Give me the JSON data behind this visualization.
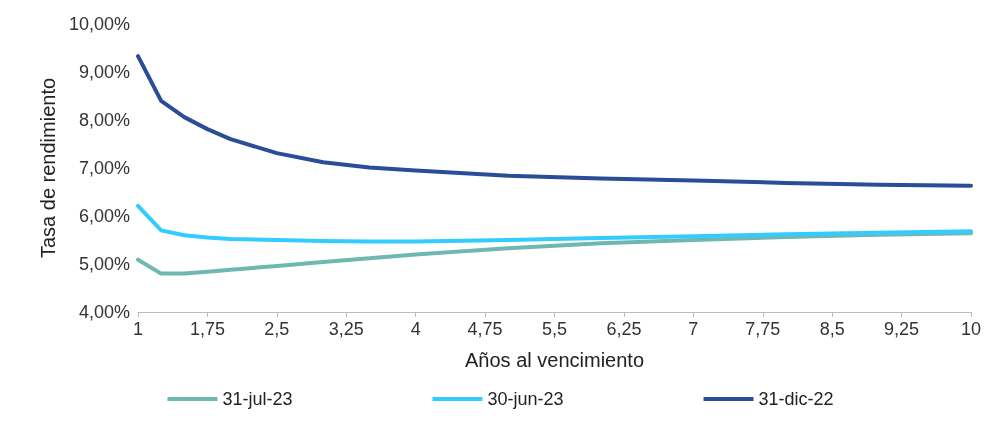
{
  "chart_data": {
    "type": "line",
    "xlabel": "Años al vencimiento",
    "ylabel": "Tasa de rendimiento",
    "x": [
      1,
      1.25,
      1.5,
      1.75,
      2,
      2.5,
      3,
      3.5,
      4,
      5,
      6,
      7,
      8,
      9,
      10
    ],
    "series": [
      {
        "name": "31-jul-23",
        "color": "#6fb8b1",
        "values": [
          5.09,
          4.8,
          4.8,
          4.84,
          4.88,
          4.96,
          5.04,
          5.12,
          5.2,
          5.33,
          5.43,
          5.5,
          5.56,
          5.61,
          5.64
        ]
      },
      {
        "name": "30-jun-23",
        "color": "#33ccff",
        "values": [
          6.21,
          5.7,
          5.6,
          5.55,
          5.52,
          5.5,
          5.48,
          5.47,
          5.47,
          5.5,
          5.54,
          5.58,
          5.62,
          5.65,
          5.68
        ]
      },
      {
        "name": "31-dic-22",
        "color": "#2b4c96",
        "values": [
          9.33,
          8.4,
          8.06,
          7.81,
          7.6,
          7.31,
          7.12,
          7.01,
          6.95,
          6.84,
          6.78,
          6.74,
          6.69,
          6.65,
          6.63
        ]
      }
    ],
    "xlim": [
      1,
      10
    ],
    "xticks": [
      1,
      {
        "value": 1.75,
        "label": "1,75"
      },
      {
        "value": 2.5,
        "label": "2,5"
      },
      {
        "value": 3.25,
        "label": "3,25"
      },
      4,
      {
        "value": 4.75,
        "label": "4,75"
      },
      {
        "value": 5.5,
        "label": "5,5"
      },
      {
        "value": 6.25,
        "label": "6,25"
      },
      7,
      {
        "value": 7.75,
        "label": "7,75"
      },
      {
        "value": 8.5,
        "label": "8,5"
      },
      {
        "value": 9.25,
        "label": "9,25"
      },
      10
    ],
    "ylim": [
      4,
      10
    ],
    "yticks": [
      {
        "value": 4,
        "label": "4,00%"
      },
      {
        "value": 5,
        "label": "5,00%"
      },
      {
        "value": 6,
        "label": "6,00%"
      },
      {
        "value": 7,
        "label": "7,00%"
      },
      {
        "value": 8,
        "label": "8,00%"
      },
      {
        "value": 9,
        "label": "9,00%"
      },
      {
        "value": 10,
        "label": "10,00%"
      }
    ],
    "grid": false,
    "legend": "bottom",
    "marker": "none",
    "line_style": "solid"
  }
}
